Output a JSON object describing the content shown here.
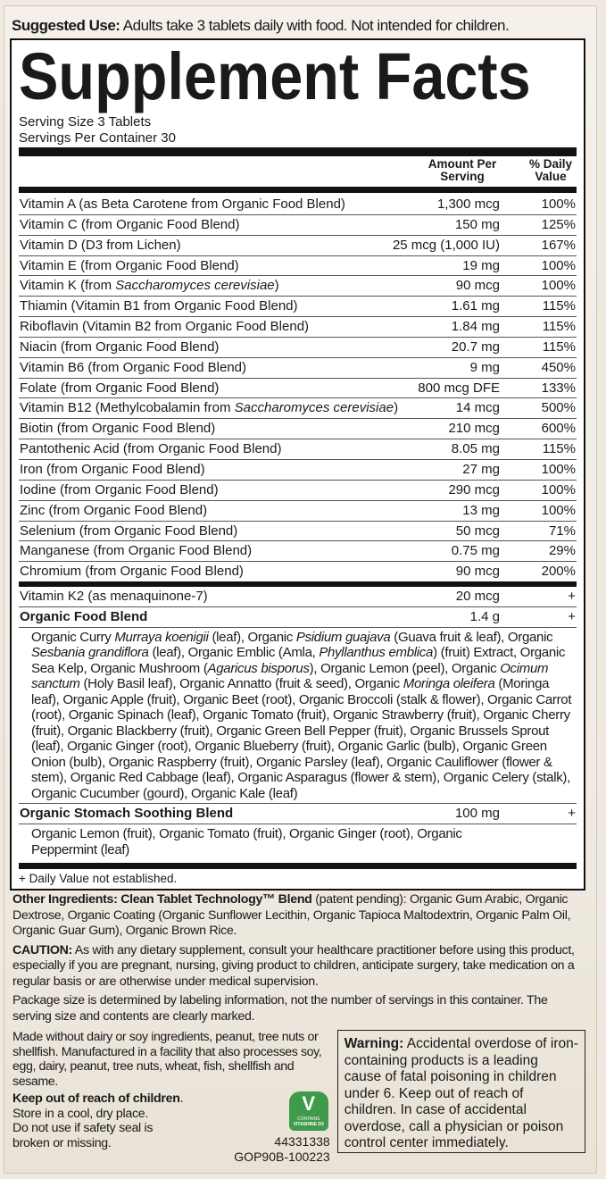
{
  "suggested_use": {
    "label": "Suggested Use:",
    "text": " Adults take 3 tablets daily with food. Not intended for children."
  },
  "title": "Supplement Facts",
  "serving_size": "Serving Size 3 Tablets",
  "servings_per_container": "Servings Per Container 30",
  "headers": {
    "amount": "Amount Per Serving",
    "dv": "% Daily Value"
  },
  "nutrients": [
    {
      "name": [
        {
          "t": "Vitamin A (as Beta Carotene from Organic Food Blend)"
        }
      ],
      "amount": "1,300 mcg",
      "dv": "100%"
    },
    {
      "name": [
        {
          "t": "Vitamin C (from Organic Food Blend)"
        }
      ],
      "amount": "150 mg",
      "dv": "125%"
    },
    {
      "name": [
        {
          "t": "Vitamin D (D3 from Lichen)"
        }
      ],
      "amount": "25 mcg (1,000 IU)",
      "dv": "167%"
    },
    {
      "name": [
        {
          "t": "Vitamin E (from Organic Food Blend)"
        }
      ],
      "amount": "19 mg",
      "dv": "100%"
    },
    {
      "name": [
        {
          "t": "Vitamin K (from "
        },
        {
          "t": "Saccharomyces cerevisiae",
          "i": true
        },
        {
          "t": ")"
        }
      ],
      "amount": "90 mcg",
      "dv": "100%"
    },
    {
      "name": [
        {
          "t": "Thiamin (Vitamin B1 from Organic Food Blend)"
        }
      ],
      "amount": "1.61 mg",
      "dv": "115%"
    },
    {
      "name": [
        {
          "t": "Riboflavin (Vitamin B2 from Organic Food Blend)"
        }
      ],
      "amount": "1.84 mg",
      "dv": "115%"
    },
    {
      "name": [
        {
          "t": "Niacin (from Organic Food Blend)"
        }
      ],
      "amount": "20.7 mg",
      "dv": "115%"
    },
    {
      "name": [
        {
          "t": "Vitamin B6 (from Organic Food Blend)"
        }
      ],
      "amount": "9 mg",
      "dv": "450%"
    },
    {
      "name": [
        {
          "t": "Folate (from Organic Food Blend)"
        }
      ],
      "amount": "800 mcg DFE",
      "dv": "133%"
    },
    {
      "name": [
        {
          "t": "Vitamin B12 (Methylcobalamin from "
        },
        {
          "t": "Saccharomyces cerevisiae",
          "i": true
        },
        {
          "t": ")"
        }
      ],
      "amount": "14 mcg",
      "dv": "500%"
    },
    {
      "name": [
        {
          "t": "Biotin (from Organic Food Blend)"
        }
      ],
      "amount": "210 mcg",
      "dv": "600%"
    },
    {
      "name": [
        {
          "t": "Pantothenic Acid (from Organic Food Blend)"
        }
      ],
      "amount": "8.05 mg",
      "dv": "115%"
    },
    {
      "name": [
        {
          "t": "Iron (from Organic Food Blend)"
        }
      ],
      "amount": "27 mg",
      "dv": "100%"
    },
    {
      "name": [
        {
          "t": "Iodine (from Organic Food Blend)"
        }
      ],
      "amount": "290 mcg",
      "dv": "100%"
    },
    {
      "name": [
        {
          "t": "Zinc (from Organic Food Blend)"
        }
      ],
      "amount": "13 mg",
      "dv": "100%"
    },
    {
      "name": [
        {
          "t": "Selenium (from Organic Food Blend)"
        }
      ],
      "amount": "50 mcg",
      "dv": "71%"
    },
    {
      "name": [
        {
          "t": "Manganese (from Organic Food Blend)"
        }
      ],
      "amount": "0.75 mg",
      "dv": "29%"
    },
    {
      "name": [
        {
          "t": "Chromium (from Organic Food Blend)"
        }
      ],
      "amount": "90 mcg",
      "dv": "200%"
    }
  ],
  "k2": {
    "name": "Vitamin K2 (as menaquinone-7)",
    "amount": "20 mcg",
    "dv": "+"
  },
  "food_blend": {
    "name": "Organic Food Blend",
    "amount": "1.4 g",
    "dv": "+",
    "ingredients": [
      {
        "t": "Organic Curry "
      },
      {
        "t": "Murraya koenigii",
        "i": true
      },
      {
        "t": " (leaf), Organic "
      },
      {
        "t": "Psidium guajava",
        "i": true
      },
      {
        "t": " (Guava fruit & leaf), Organic "
      },
      {
        "t": "Sesbania grandiflora",
        "i": true
      },
      {
        "t": " (leaf), Organic Emblic (Amla, "
      },
      {
        "t": "Phyllanthus emblica",
        "i": true
      },
      {
        "t": ") (fruit) Extract, Organic Sea Kelp, Organic Mushroom ("
      },
      {
        "t": "Agaricus bisporus",
        "i": true
      },
      {
        "t": "), Organic Lemon (peel), Organic "
      },
      {
        "t": "Ocimum sanctum",
        "i": true
      },
      {
        "t": " (Holy Basil leaf), Organic Annatto (fruit & seed), Organic "
      },
      {
        "t": "Moringa oleifera",
        "i": true
      },
      {
        "t": " (Moringa leaf), Organic Apple (fruit), Organic Beet (root), Organic Broccoli (stalk & flower), Organic Carrot (root), Organic Spinach (leaf), Organic Tomato (fruit), Organic Strawberry (fruit), Organic Cherry (fruit), Organic Blackberry (fruit), Organic Green Bell Pepper (fruit), Organic Brussels Sprout (leaf), Organic Ginger (root), Organic Blueberry (fruit), Organic Garlic (bulb), Organic Green Onion (bulb), Organic Raspberry (fruit), Organic Parsley (leaf), Organic Cauliflower (flower & stem), Organic Red Cabbage (leaf), Organic Asparagus (flower & stem), Organic Celery (stalk), Organic Cucumber (gourd), Organic Kale (leaf)"
      }
    ]
  },
  "stomach_blend": {
    "name": "Organic Stomach Soothing Blend",
    "amount": "100 mg",
    "dv": "+",
    "ingredients": [
      {
        "t": "Organic Lemon (fruit), Organic Tomato (fruit), Organic Ginger (root), Organic Peppermint (leaf)"
      }
    ]
  },
  "footnote": "+ Daily Value not established.",
  "other_ingredients": {
    "label": "Other Ingredients: Clean Tablet Technology™ Blend",
    "text": " (patent pending): Organic Gum Arabic, Organic Dextrose, Organic Coating (Organic Sunflower Lecithin, Organic Tapioca Maltodextrin, Organic Palm Oil, Organic Guar Gum), Organic Brown Rice."
  },
  "caution": {
    "label": "CAUTION:",
    "text": " As with any dietary supplement, consult your healthcare practitioner before using this product, especially if you are pregnant, nursing, giving product to children, anticipate surgery, take medication on a regular basis or are otherwise under medical supervision."
  },
  "package_note": "Package size is determined by labeling information, not the number of servings in this container. The serving size and contents are clearly marked.",
  "allergen": "Made without dairy or soy ingredients, peanut, tree nuts or shellfish. Manufactured in a facility that also processes soy, egg, dairy, peanut, tree nuts, wheat, fish, shellfish and sesame.",
  "keep_out": "Keep out of reach of children",
  "storage": [
    "Store in a cool, dry place.",
    "Do not use if safety seal is",
    "broken or missing."
  ],
  "badge": {
    "line1": "CONTAINS",
    "line2": "VITASHINE D3",
    "color": "#3f9a4a"
  },
  "codes": [
    "44331338",
    "GOP90B-100223"
  ],
  "warning": {
    "label": "Warning:",
    "text": " Accidental overdose of iron-containing products is a leading cause of fatal poisoning in children under 6. Keep out of reach of children. In case of accidental overdose, call a physician or poison control center immediately."
  }
}
